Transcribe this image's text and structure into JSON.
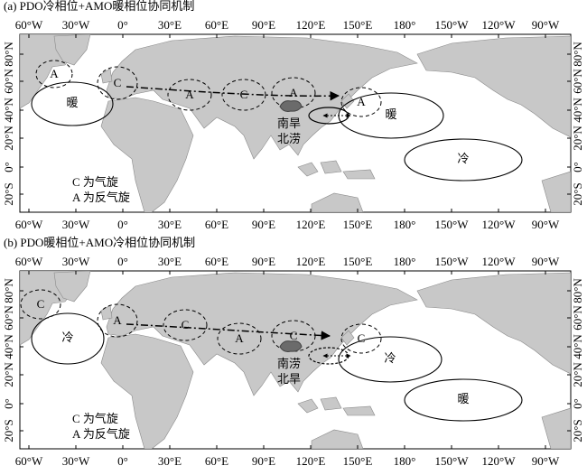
{
  "panels": [
    {
      "title": "(a) PDO冷相位+AMO暖相位协同机制",
      "lon_ticks": [
        "60°W",
        "30°W",
        "0°",
        "30°E",
        "60°E",
        "90°E",
        "120°E",
        "150°E",
        "180°",
        "150°W",
        "120°W",
        "90°W"
      ],
      "lat_ticks": [
        "80°N",
        "60°N",
        "40°N",
        "20°N",
        "0°",
        "20°S"
      ],
      "circulation_centers": [
        "A",
        "C",
        "A",
        "C",
        "A",
        "A"
      ],
      "sst_anomalies": [
        "暖",
        "暖",
        "冷"
      ],
      "rainfall_pattern": [
        "南旱",
        "北涝"
      ],
      "legend": [
        "C 为气旋",
        "A 为反气旋"
      ]
    },
    {
      "title": "(b) PDO暖相位+AMO冷相位协同机制",
      "lon_ticks": [
        "60°W",
        "30°W",
        "0°",
        "30°E",
        "60°E",
        "90°E",
        "120°E",
        "150°E",
        "180°",
        "150°W",
        "120°W",
        "90°W"
      ],
      "lat_ticks": [
        "80°N",
        "60°N",
        "40°N",
        "20°N",
        "0°",
        "20°S"
      ],
      "circulation_centers": [
        "C",
        "A",
        "C",
        "A",
        "C",
        "C"
      ],
      "sst_anomalies": [
        "冷",
        "冷",
        "暖"
      ],
      "rainfall_pattern": [
        "南涝",
        "北旱"
      ],
      "legend": [
        "C 为气旋",
        "A 为反气旋"
      ]
    }
  ]
}
